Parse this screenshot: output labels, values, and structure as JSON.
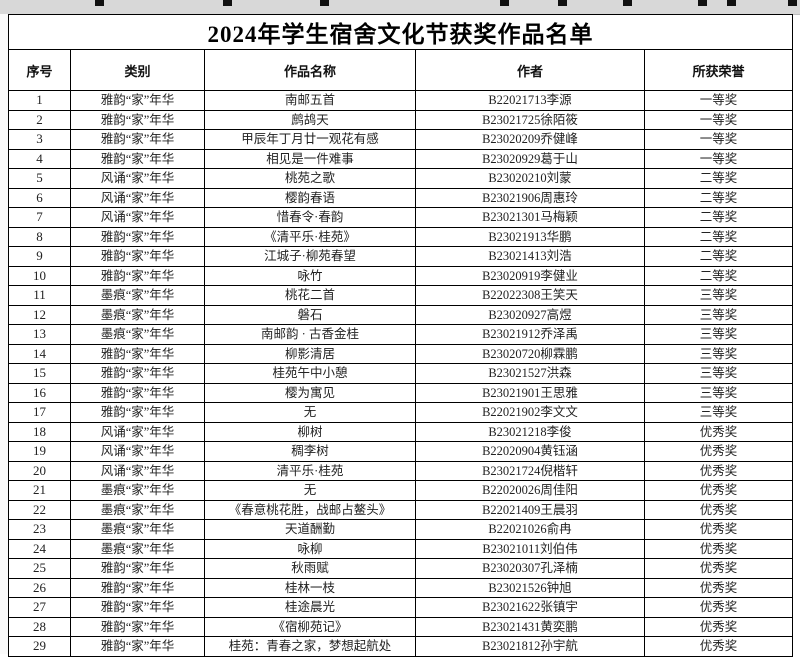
{
  "document": {
    "title": "2024年学生宿舍文化节获奖作品名单"
  },
  "table": {
    "headers": [
      "序号",
      "类别",
      "作品名称",
      "作者",
      "所获荣誉"
    ],
    "rows": [
      {
        "no": "1",
        "category": "雅韵“家”年华",
        "work": "南邮五首",
        "author": "B22021713李源",
        "award": "一等奖"
      },
      {
        "no": "2",
        "category": "雅韵“家”年华",
        "work": "鹧鸪天",
        "author": "B23021725徐陌筱",
        "award": "一等奖"
      },
      {
        "no": "3",
        "category": "雅韵“家”年华",
        "work": "甲辰年丁月廿一观花有感",
        "author": "B23020209乔健峰",
        "award": "一等奖"
      },
      {
        "no": "4",
        "category": "雅韵“家”年华",
        "work": "相见是一件难事",
        "author": "B23020929葛于山",
        "award": "一等奖"
      },
      {
        "no": "5",
        "category": "风诵“家”年华",
        "work": "桃苑之歌",
        "author": "B23020210刘蒙",
        "award": "二等奖"
      },
      {
        "no": "6",
        "category": "风诵“家”年华",
        "work": "樱韵春语",
        "author": "B23021906周惠玲",
        "award": "二等奖"
      },
      {
        "no": "7",
        "category": "风诵“家”年华",
        "work": "惜春令·春韵",
        "author": "B23021301马梅颖",
        "award": "二等奖"
      },
      {
        "no": "8",
        "category": "雅韵“家”年华",
        "work": "《清平乐·桂苑》",
        "author": "B23021913华鹏",
        "award": "二等奖"
      },
      {
        "no": "9",
        "category": "雅韵“家”年华",
        "work": "江城子·柳苑春望",
        "author": "B23021413刘浩",
        "award": "二等奖"
      },
      {
        "no": "10",
        "category": "雅韵“家”年华",
        "work": "咏竹",
        "author": "B23020919李健业",
        "award": "二等奖"
      },
      {
        "no": "11",
        "category": "墨痕“家”年华",
        "work": "桃花二首",
        "author": "B22022308王笑天",
        "award": "三等奖"
      },
      {
        "no": "12",
        "category": "墨痕“家”年华",
        "work": "磐石",
        "author": "B23020927高煜",
        "award": "三等奖"
      },
      {
        "no": "13",
        "category": "墨痕“家”年华",
        "work": "南邮韵 · 古香金桂",
        "author": "B23021912乔泽禹",
        "award": "三等奖"
      },
      {
        "no": "14",
        "category": "雅韵“家”年华",
        "work": "柳影清居",
        "author": "B23020720柳霖鹏",
        "award": "三等奖"
      },
      {
        "no": "15",
        "category": "雅韵“家”年华",
        "work": "桂苑午中小憩",
        "author": "B23021527洪森",
        "award": "三等奖"
      },
      {
        "no": "16",
        "category": "雅韵“家”年华",
        "work": "樱为寓见",
        "author": "B23021901王思雅",
        "award": "三等奖"
      },
      {
        "no": "17",
        "category": "雅韵“家”年华",
        "work": "无",
        "author": "B22021902李文文",
        "award": "三等奖"
      },
      {
        "no": "18",
        "category": "风诵“家”年华",
        "work": "柳树",
        "author": "B23021218李俊",
        "award": "优秀奖"
      },
      {
        "no": "19",
        "category": "风诵“家”年华",
        "work": "稠李树",
        "author": "B22020904黄钰涵",
        "award": "优秀奖"
      },
      {
        "no": "20",
        "category": "风诵“家”年华",
        "work": "清平乐·桂苑",
        "author": "B23021724倪楷轩",
        "award": "优秀奖"
      },
      {
        "no": "21",
        "category": "墨痕“家”年华",
        "work": "无",
        "author": "B22020026周佳阳",
        "award": "优秀奖"
      },
      {
        "no": "22",
        "category": "墨痕“家”年华",
        "work": "《春意桃花胜，战邮占鳌头》",
        "author": "B22021409王晨羽",
        "award": "优秀奖"
      },
      {
        "no": "23",
        "category": "墨痕“家”年华",
        "work": "天道酬勤",
        "author": "B22021026俞冉",
        "award": "优秀奖"
      },
      {
        "no": "24",
        "category": "墨痕“家”年华",
        "work": "咏柳",
        "author": "B23021011刘伯伟",
        "award": "优秀奖"
      },
      {
        "no": "25",
        "category": "雅韵“家”年华",
        "work": "秋雨赋",
        "author": "B23020307孔泽楠",
        "award": "优秀奖"
      },
      {
        "no": "26",
        "category": "雅韵“家”年华",
        "work": "桂林一枝",
        "author": "B23021526钟旭",
        "award": "优秀奖"
      },
      {
        "no": "27",
        "category": "雅韵“家”年华",
        "work": "桂途晨光",
        "author": "B23021622张镇宇",
        "award": "优秀奖"
      },
      {
        "no": "28",
        "category": "雅韵“家”年华",
        "work": "《宿柳苑记》",
        "author": "B23021431黄奕鹏",
        "award": "优秀奖"
      },
      {
        "no": "29",
        "category": "雅韵“家”年华",
        "work": "桂苑：青春之家，梦想起航处",
        "author": "B23021812孙宇航",
        "award": "优秀奖"
      }
    ]
  }
}
